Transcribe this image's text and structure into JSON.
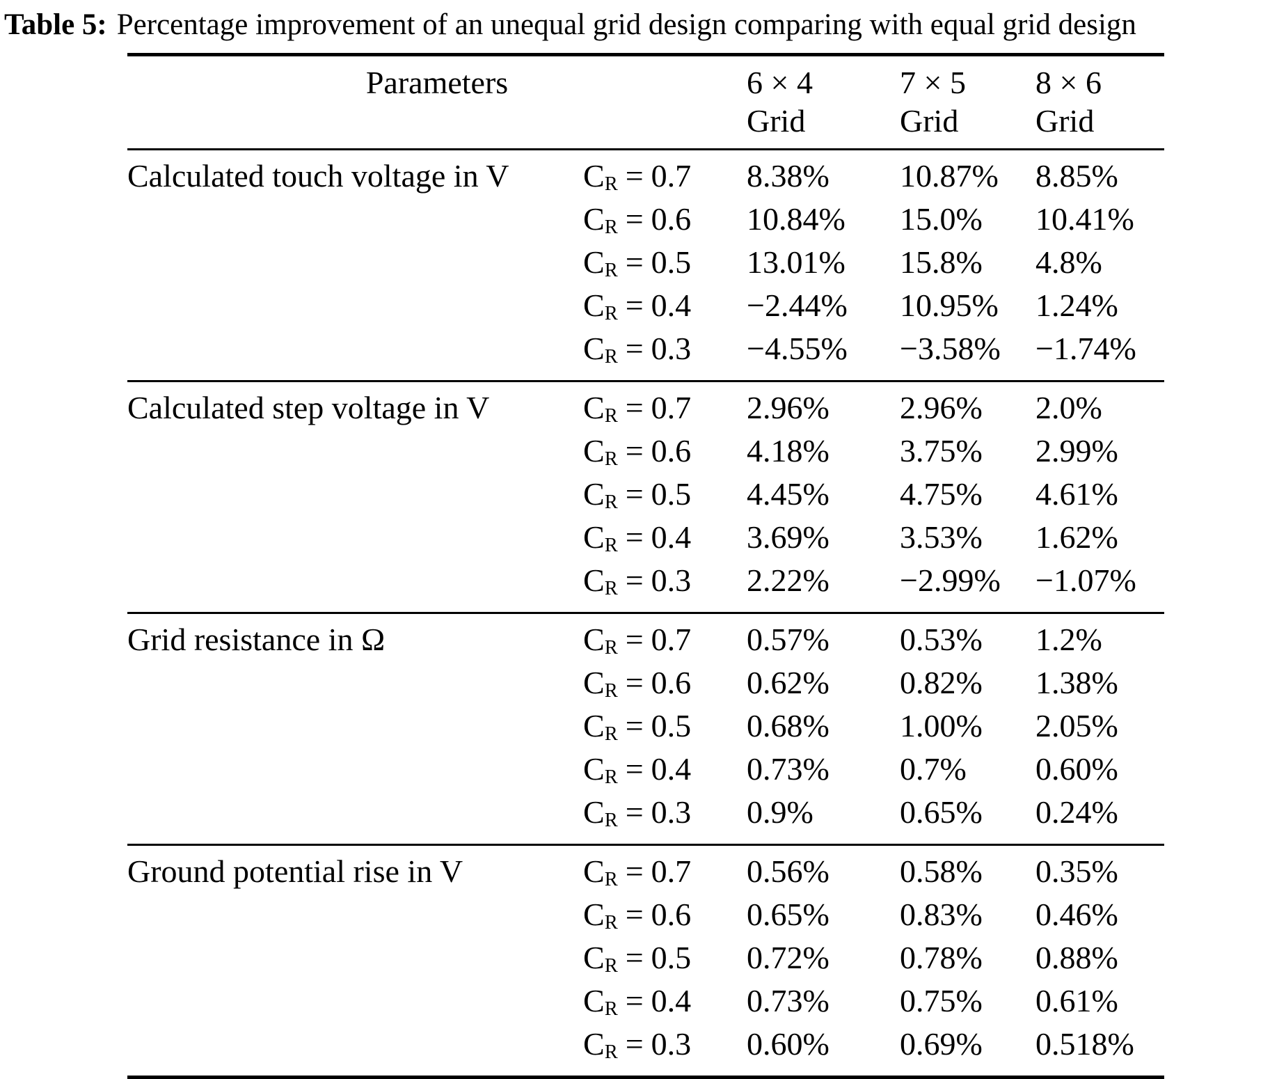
{
  "caption": {
    "label": "Table 5:",
    "text": "Percentage improvement of an unequal grid design comparing with equal grid design"
  },
  "table": {
    "header": {
      "parameters_label": "Parameters",
      "columns": [
        {
          "size": "6 × 4",
          "word": "Grid"
        },
        {
          "size": "7 × 5",
          "word": "Grid"
        },
        {
          "size": "8 × 6",
          "word": "Grid"
        }
      ]
    },
    "cr": {
      "symbol": "C",
      "subscript": "R",
      "equals": "="
    },
    "sections": [
      {
        "parameter": "Calculated touch voltage in V",
        "rows": [
          {
            "cr_value": "0.7",
            "values": [
              "8.38%",
              "10.87%",
              "8.85%"
            ]
          },
          {
            "cr_value": "0.6",
            "values": [
              "10.84%",
              "15.0%",
              "10.41%"
            ]
          },
          {
            "cr_value": "0.5",
            "values": [
              "13.01%",
              "15.8%",
              "4.8%"
            ]
          },
          {
            "cr_value": "0.4",
            "values": [
              "−2.44%",
              "10.95%",
              "1.24%"
            ]
          },
          {
            "cr_value": "0.3",
            "values": [
              "−4.55%",
              "−3.58%",
              "−1.74%"
            ]
          }
        ]
      },
      {
        "parameter": "Calculated step voltage in V",
        "rows": [
          {
            "cr_value": "0.7",
            "values": [
              "2.96%",
              "2.96%",
              "2.0%"
            ]
          },
          {
            "cr_value": "0.6",
            "values": [
              "4.18%",
              "3.75%",
              "2.99%"
            ]
          },
          {
            "cr_value": "0.5",
            "values": [
              "4.45%",
              "4.75%",
              "4.61%"
            ]
          },
          {
            "cr_value": "0.4",
            "values": [
              "3.69%",
              "3.53%",
              "1.62%"
            ]
          },
          {
            "cr_value": "0.3",
            "values": [
              "2.22%",
              "−2.99%",
              "−1.07%"
            ]
          }
        ]
      },
      {
        "parameter": "Grid resistance in Ω",
        "rows": [
          {
            "cr_value": "0.7",
            "values": [
              "0.57%",
              "0.53%",
              "1.2%"
            ]
          },
          {
            "cr_value": "0.6",
            "values": [
              "0.62%",
              "0.82%",
              "1.38%"
            ]
          },
          {
            "cr_value": "0.5",
            "values": [
              "0.68%",
              "1.00%",
              "2.05%"
            ]
          },
          {
            "cr_value": "0.4",
            "values": [
              "0.73%",
              "0.7%",
              "0.60%"
            ]
          },
          {
            "cr_value": "0.3",
            "values": [
              "0.9%",
              "0.65%",
              "0.24%"
            ]
          }
        ]
      },
      {
        "parameter": "Ground potential rise in V",
        "rows": [
          {
            "cr_value": "0.7",
            "values": [
              "0.56%",
              "0.58%",
              "0.35%"
            ]
          },
          {
            "cr_value": "0.6",
            "values": [
              "0.65%",
              "0.83%",
              "0.46%"
            ]
          },
          {
            "cr_value": "0.5",
            "values": [
              "0.72%",
              "0.78%",
              "0.88%"
            ]
          },
          {
            "cr_value": "0.4",
            "values": [
              "0.73%",
              "0.75%",
              "0.61%"
            ]
          },
          {
            "cr_value": "0.3",
            "values": [
              "0.60%",
              "0.69%",
              "0.518%"
            ]
          }
        ]
      }
    ]
  }
}
